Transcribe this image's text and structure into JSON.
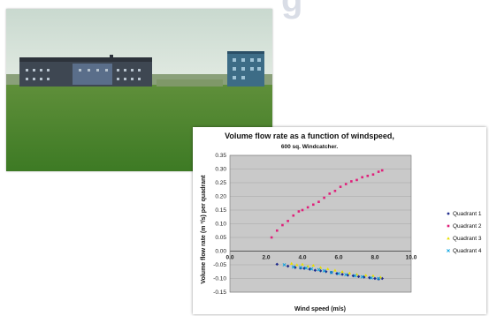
{
  "slide": {
    "title_fragment": "g"
  },
  "photo": {
    "description_icon": "windcatcher-building-photo"
  },
  "chart_data": {
    "type": "scatter",
    "title": "Volume flow rate as a function of windspeed,",
    "subtitle": "600 sq. Windcatcher.",
    "xlabel": "Wind speed (m/s)",
    "ylabel": "Volume flow rate (m ³/s) per quadrant",
    "xlim": [
      0,
      10
    ],
    "ylim": [
      -0.15,
      0.35
    ],
    "x_ticks": [
      "0.0",
      "2.0",
      "4.0",
      "6.0",
      "8.0",
      "10.0"
    ],
    "y_ticks": [
      "0.35",
      "0.30",
      "0.25",
      "0.20",
      "0.15",
      "0.10",
      "0.05",
      "0.00",
      "-0.05",
      "-0.10",
      "-0.15"
    ],
    "grid": true,
    "legend_position": "right",
    "series": [
      {
        "name": "Quadrant 1",
        "color": "#1f2b8c",
        "marker": "diamond",
        "points": [
          [
            2.6,
            -0.048
          ],
          [
            3.2,
            -0.055
          ],
          [
            3.6,
            -0.06
          ],
          [
            3.9,
            -0.062
          ],
          [
            4.1,
            -0.063
          ],
          [
            4.4,
            -0.066
          ],
          [
            4.7,
            -0.07
          ],
          [
            5.0,
            -0.072
          ],
          [
            5.3,
            -0.075
          ],
          [
            5.6,
            -0.078
          ],
          [
            5.9,
            -0.082
          ],
          [
            6.2,
            -0.085
          ],
          [
            6.5,
            -0.088
          ],
          [
            6.8,
            -0.09
          ],
          [
            7.1,
            -0.093
          ],
          [
            7.4,
            -0.095
          ],
          [
            7.7,
            -0.097
          ],
          [
            8.0,
            -0.1
          ],
          [
            8.2,
            -0.102
          ],
          [
            8.4,
            -0.1
          ]
        ]
      },
      {
        "name": "Quadrant 2",
        "color": "#e0207a",
        "marker": "square",
        "points": [
          [
            2.3,
            0.05
          ],
          [
            2.6,
            0.075
          ],
          [
            2.9,
            0.095
          ],
          [
            3.2,
            0.11
          ],
          [
            3.5,
            0.13
          ],
          [
            3.8,
            0.145
          ],
          [
            4.0,
            0.15
          ],
          [
            4.3,
            0.16
          ],
          [
            4.6,
            0.17
          ],
          [
            4.9,
            0.18
          ],
          [
            5.2,
            0.195
          ],
          [
            5.5,
            0.21
          ],
          [
            5.8,
            0.22
          ],
          [
            6.1,
            0.235
          ],
          [
            6.4,
            0.245
          ],
          [
            6.7,
            0.255
          ],
          [
            7.0,
            0.26
          ],
          [
            7.3,
            0.27
          ],
          [
            7.6,
            0.275
          ],
          [
            7.9,
            0.28
          ],
          [
            8.2,
            0.29
          ],
          [
            8.4,
            0.295
          ]
        ]
      },
      {
        "name": "Quadrant 3",
        "color": "#e8e000",
        "marker": "triangle",
        "points": [
          [
            3.4,
            -0.045
          ],
          [
            3.7,
            -0.05
          ],
          [
            4.0,
            -0.048
          ],
          [
            4.3,
            -0.055
          ],
          [
            4.6,
            -0.052
          ],
          [
            5.0,
            -0.06
          ],
          [
            5.4,
            -0.065
          ],
          [
            5.8,
            -0.07
          ],
          [
            6.2,
            -0.075
          ],
          [
            6.6,
            -0.08
          ],
          [
            7.0,
            -0.085
          ],
          [
            7.5,
            -0.088
          ],
          [
            7.9,
            -0.09
          ],
          [
            8.3,
            -0.095
          ]
        ]
      },
      {
        "name": "Quadrant 4",
        "color": "#00a0e0",
        "marker": "x",
        "points": [
          [
            3.0,
            -0.05
          ],
          [
            3.5,
            -0.058
          ],
          [
            3.9,
            -0.06
          ],
          [
            4.2,
            -0.062
          ],
          [
            4.5,
            -0.065
          ],
          [
            4.9,
            -0.068
          ],
          [
            5.2,
            -0.072
          ],
          [
            5.6,
            -0.078
          ],
          [
            6.0,
            -0.082
          ],
          [
            6.4,
            -0.086
          ],
          [
            6.9,
            -0.09
          ],
          [
            7.3,
            -0.094
          ],
          [
            7.8,
            -0.098
          ],
          [
            8.2,
            -0.1
          ]
        ]
      }
    ]
  }
}
